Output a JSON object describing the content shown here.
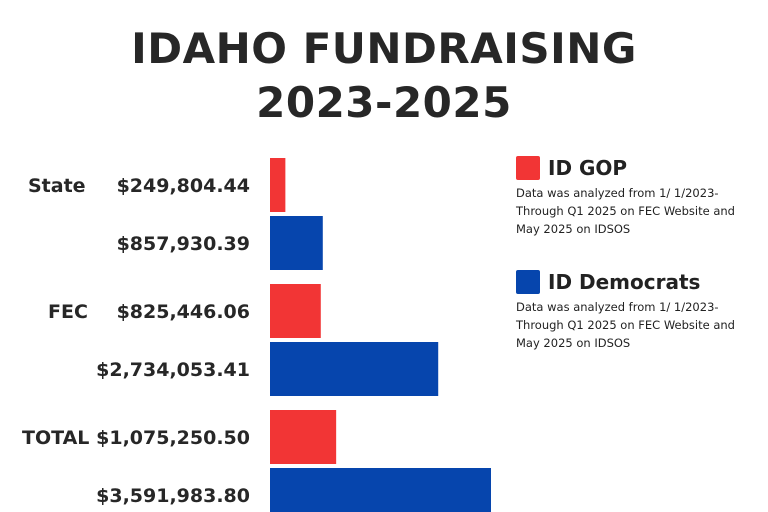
{
  "title_line1": "IDAHO FUNDRAISING",
  "title_line2": "2023-2025",
  "legend": [
    {
      "name": "ID GOP",
      "color": "#F23535",
      "note": "Data was analyzed from 1/ 1/2023- Through Q1 2025 on FEC Website and May 2025 on IDSOS"
    },
    {
      "name": "ID Democrats",
      "color": "#0645AD",
      "note": "Data was analyzed from 1/ 1/2023- Through Q1 2025 on FEC Website and May 2025 on IDSOS"
    }
  ],
  "chart_data": {
    "type": "bar",
    "orientation": "horizontal",
    "categories": [
      "State",
      "FEC",
      "TOTAL"
    ],
    "series": [
      {
        "name": "ID GOP",
        "color": "#F23535",
        "values": [
          249804.44,
          825446.06,
          1075250.5
        ],
        "labels": [
          "$249,804.44",
          "$825,446.06",
          "$1,075,250.50"
        ]
      },
      {
        "name": "ID Democrats",
        "color": "#0645AD",
        "values": [
          857930.39,
          2734053.41,
          3591983.8
        ],
        "labels": [
          "$857,930.39",
          "$2,734,053.41",
          "$3,591,983.80"
        ]
      }
    ],
    "legend_position": "right",
    "grid": false
  }
}
